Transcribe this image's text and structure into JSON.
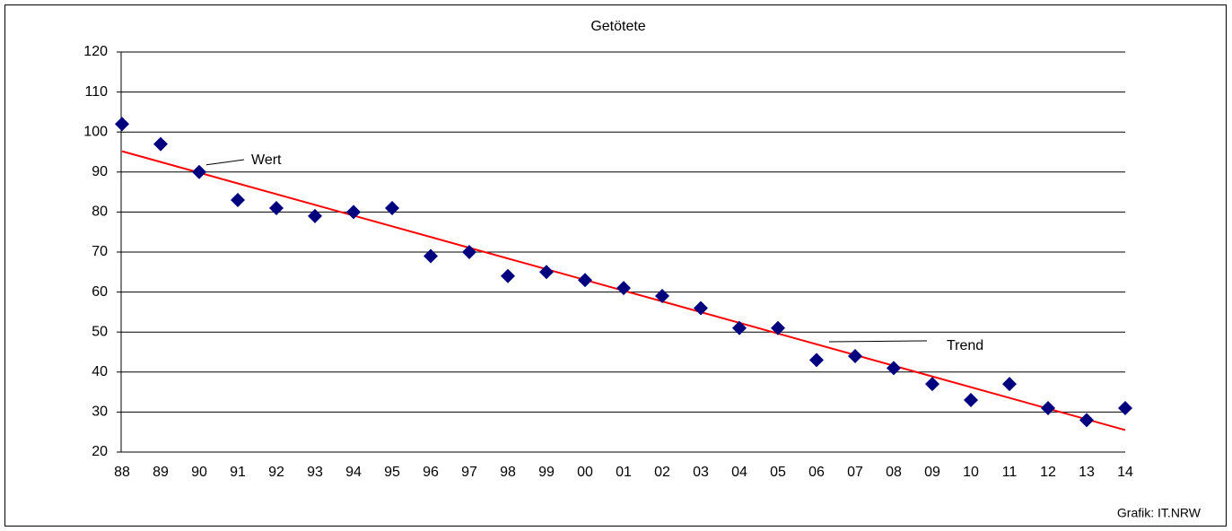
{
  "chart_data": {
    "type": "scatter",
    "title": "Getötete",
    "categories": [
      "88",
      "89",
      "90",
      "91",
      "92",
      "93",
      "94",
      "95",
      "96",
      "97",
      "98",
      "99",
      "00",
      "01",
      "02",
      "03",
      "04",
      "05",
      "06",
      "07",
      "08",
      "09",
      "10",
      "11",
      "12",
      "13",
      "14"
    ],
    "series": [
      {
        "name": "Wert",
        "color": "#00007f",
        "values": [
          102,
          97,
          90,
          83,
          81,
          79,
          80,
          81,
          69,
          70,
          64,
          65,
          63,
          61,
          59,
          56,
          51,
          51,
          43,
          44,
          41,
          37,
          33,
          37,
          31,
          28,
          31
        ]
      }
    ],
    "trend": {
      "name": "Trend",
      "color": "#ff0000",
      "start": 95.2,
      "end": 25.5
    },
    "ylim": [
      20,
      120
    ],
    "yticks": [
      20,
      30,
      40,
      50,
      60,
      70,
      80,
      90,
      100,
      110,
      120
    ],
    "grid": true,
    "credit": "Grafik: IT.NRW"
  }
}
